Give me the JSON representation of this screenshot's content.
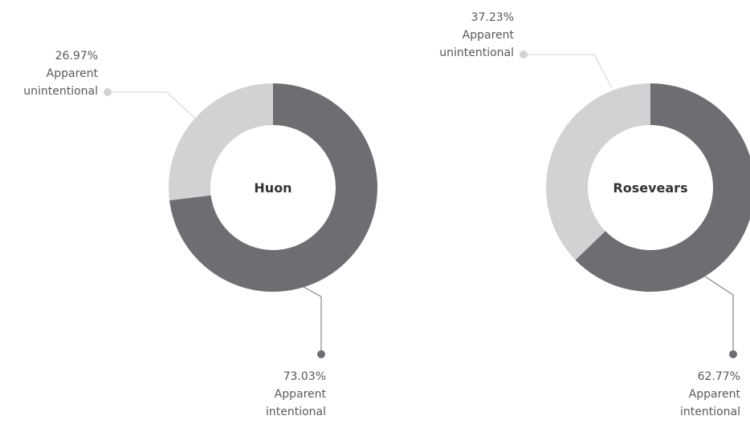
{
  "chart_data": [
    {
      "type": "pie",
      "title": "Huon",
      "categories": [
        "Apparent intentional",
        "Apparent unintentional"
      ],
      "values": [
        73.03,
        26.97
      ],
      "value_labels": [
        "73.03%",
        "26.97%"
      ],
      "colors": [
        "#6d6e71",
        "#d1d2d4"
      ]
    },
    {
      "type": "pie",
      "title": "Rosevears",
      "categories": [
        "Apparent intentional",
        "Apparent unintentional"
      ],
      "values": [
        62.77,
        37.23
      ],
      "value_labels": [
        "62.77%",
        "37.23%"
      ],
      "colors": [
        "#6d6e71",
        "#d1d2d4"
      ]
    }
  ]
}
